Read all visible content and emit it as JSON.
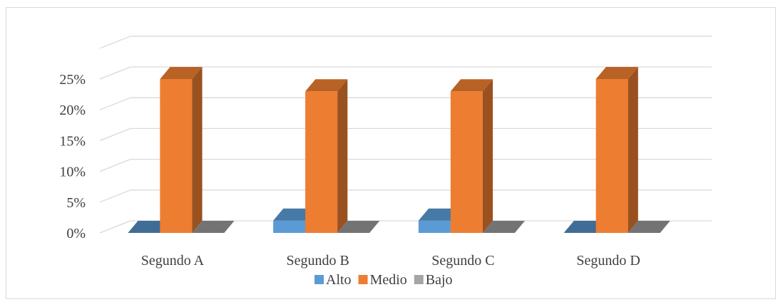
{
  "chart_data": {
    "type": "bar",
    "title": "",
    "xlabel": "",
    "ylabel": "",
    "categories": [
      "Segundo A",
      "Segundo B",
      "Segundo C",
      "Segundo D"
    ],
    "series": [
      {
        "name": "Alto",
        "values": [
          0,
          2,
          2,
          0
        ],
        "color": "#5b9bd5"
      },
      {
        "name": "Medio",
        "values": [
          25,
          23,
          23,
          25
        ],
        "color": "#ed7d31"
      },
      {
        "name": "Bajo",
        "values": [
          0,
          0,
          0,
          0
        ],
        "color": "#a5a5a5"
      }
    ],
    "ylim": [
      0,
      25
    ],
    "yticks": [
      "0%",
      "5%",
      "10%",
      "15%",
      "20%",
      "25%"
    ],
    "grid": true,
    "legend_position": "bottom",
    "style": "3d-column"
  }
}
